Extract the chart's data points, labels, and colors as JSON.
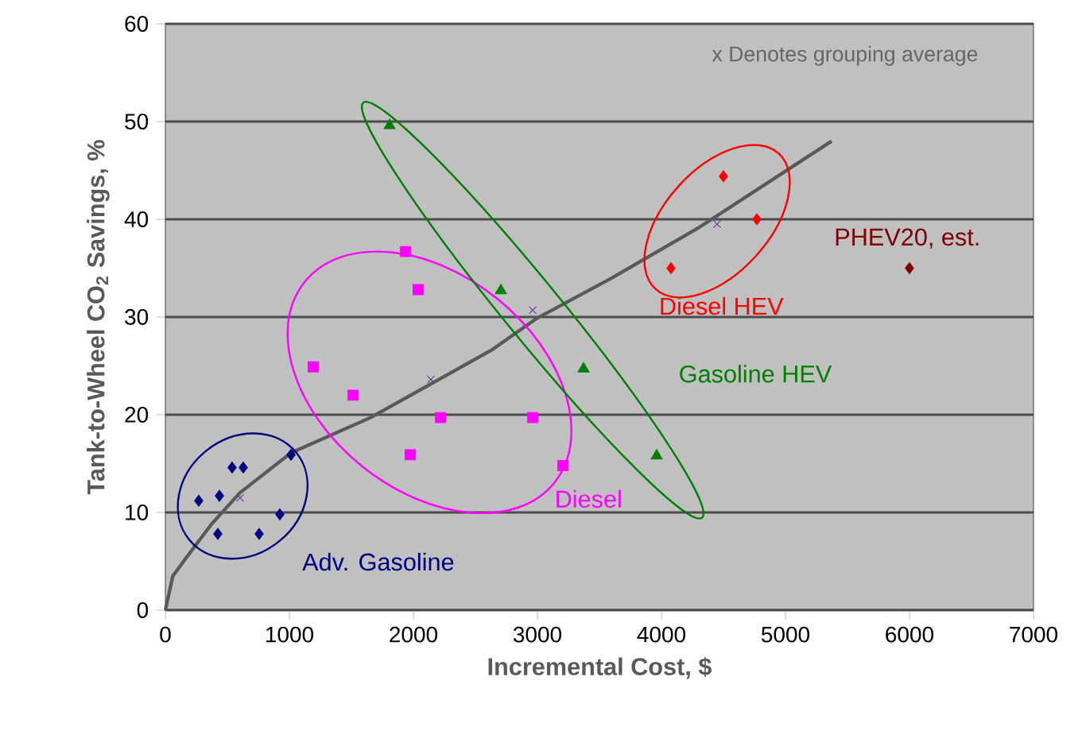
{
  "chart_data": {
    "type": "scatter",
    "xlabel": "Incremental Cost, $",
    "ylabel": "Tank-to-Wheel CO$_{2}$ Savings, %",
    "annotations": [
      "x Denotes grouping average"
    ],
    "xlim": [
      0,
      7000
    ],
    "ylim": [
      0,
      60
    ],
    "xticks": [
      0,
      1000,
      2000,
      3000,
      4000,
      5000,
      6000,
      7000
    ],
    "yticks": [
      0,
      10,
      20,
      30,
      40,
      50,
      60
    ],
    "grid": "y",
    "series": [
      {
        "name": "Adv. Gasoline",
        "color": "#000080",
        "marker": "diamond",
        "x": [
          269,
          436,
          538,
          628,
          1013,
          923,
          423,
          756
        ],
        "values": [
          11.2,
          11.7,
          14.6,
          14.6,
          15.9,
          9.8,
          7.8,
          7.8
        ]
      },
      {
        "name": "Diesel",
        "color": "#ff00ff",
        "marker": "square",
        "x": [
          1936,
          2038,
          1192,
          1513,
          2218,
          2962,
          1974,
          3205
        ],
        "values": [
          36.7,
          32.8,
          24.9,
          22,
          19.7,
          19.7,
          15.9,
          14.8
        ]
      },
      {
        "name": "Gasoline HEV",
        "color": "#008000",
        "marker": "triangle",
        "x": [
          1808,
          2705,
          3372,
          3962
        ],
        "values": [
          49.6,
          32.7,
          24.7,
          15.8
        ]
      },
      {
        "name": "Diesel HEV",
        "color": "#ff0000",
        "marker": "diamond",
        "x": [
          4500,
          4769,
          4077
        ],
        "values": [
          44.4,
          40,
          35
        ]
      },
      {
        "name": "PHEV20, est.",
        "color": "#800000",
        "marker": "diamond",
        "x": [
          6000
        ],
        "values": [
          35
        ]
      },
      {
        "color": "#7030a0",
        "marker": "cross",
        "x": [
          603,
          2141,
          2962,
          4449
        ],
        "values": [
          11.5,
          23.6,
          30.7,
          39.5
        ]
      },
      {
        "type": "line",
        "color": "#595959",
        "marker": "none",
        "x": [
          0,
          60,
          205,
          372,
          600,
          1013,
          1654,
          2641,
          2987,
          3600,
          4308,
          5372
        ],
        "values": [
          0,
          3.5,
          6,
          8.8,
          12,
          16.1,
          19.7,
          26.7,
          29.8,
          34,
          39.2,
          48
        ]
      }
    ]
  }
}
